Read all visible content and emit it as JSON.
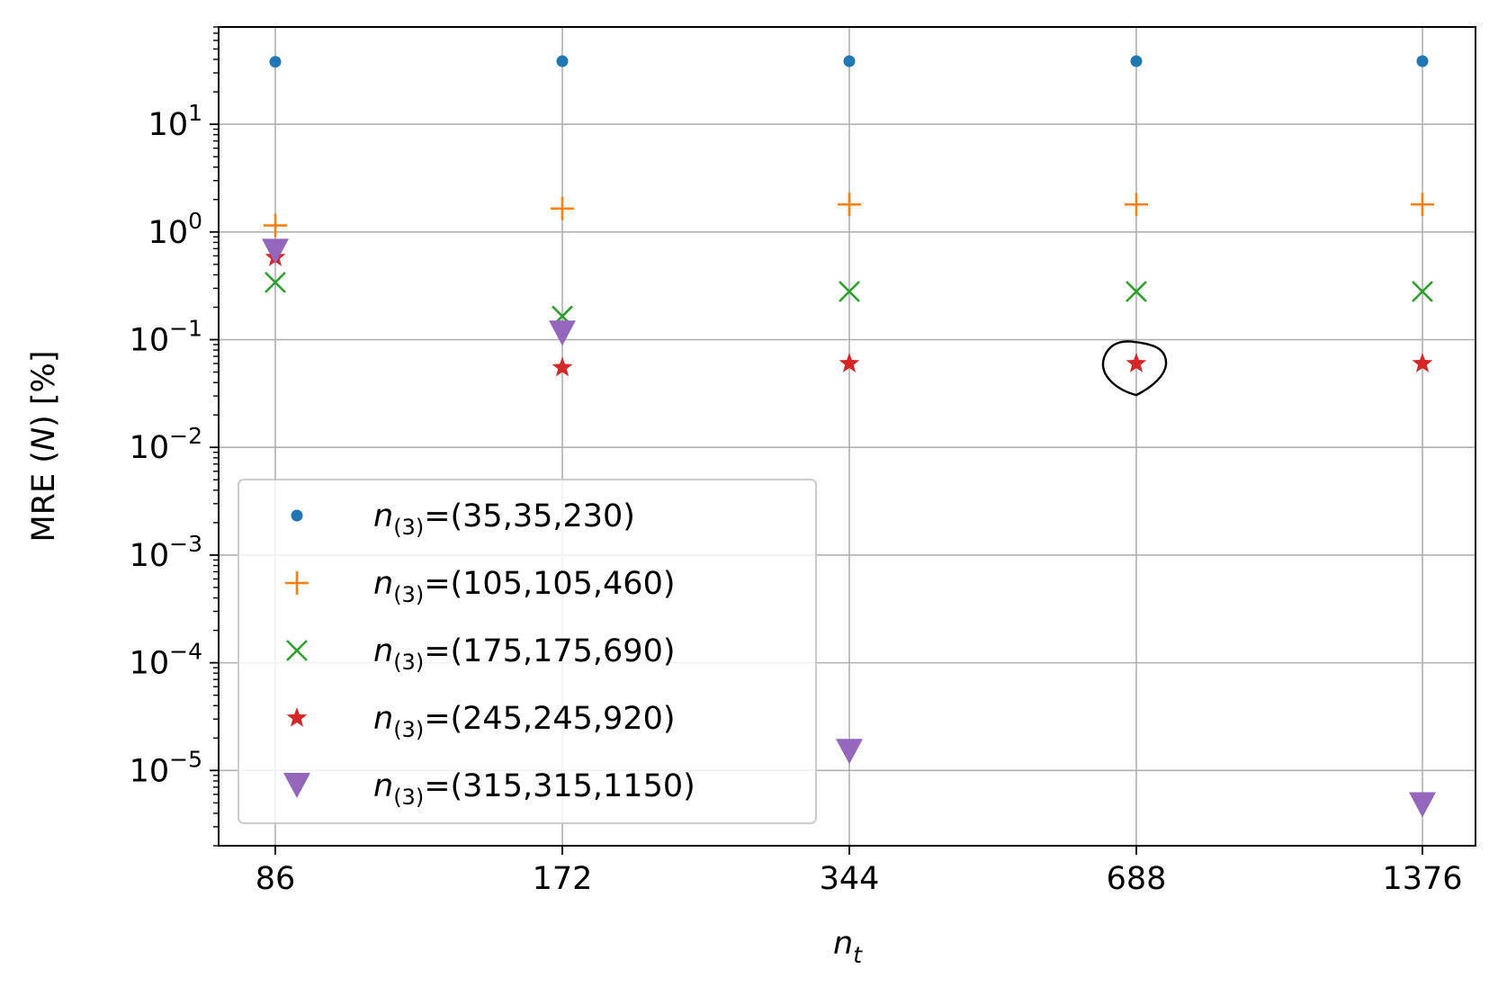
{
  "chart_data": {
    "type": "scatter",
    "title": "",
    "xlabel": {
      "base": "n",
      "sub": "t"
    },
    "ylabel": {
      "prefix": "MRE (",
      "var": "N",
      "suffix": ") [%]"
    },
    "yscale": "log",
    "ylim": [
      2e-06,
      80
    ],
    "grid": true,
    "categories": [
      "86",
      "172",
      "344",
      "688",
      "1376"
    ],
    "yticks": [
      {
        "exp": 1,
        "base": "10",
        "sup": "1"
      },
      {
        "exp": 0,
        "base": "10",
        "sup": "0"
      },
      {
        "exp": -1,
        "base": "10",
        "sup": "−1"
      },
      {
        "exp": -2,
        "base": "10",
        "sup": "−2"
      },
      {
        "exp": -3,
        "base": "10",
        "sup": "−3"
      },
      {
        "exp": -4,
        "base": "10",
        "sup": "−4"
      },
      {
        "exp": -5,
        "base": "10",
        "sup": "−5"
      }
    ],
    "legend_position": "lower-left",
    "series": [
      {
        "name": "n(3)=(35,35,230)",
        "label_base": "n",
        "label_sub": "(3)",
        "label_rest": "=(35,35,230)",
        "marker": "dot",
        "color": "#1f77b4",
        "values": [
          38,
          38.5,
          38.5,
          38.5,
          38.5
        ]
      },
      {
        "name": "n(3)=(105,105,460)",
        "label_base": "n",
        "label_sub": "(3)",
        "label_rest": "=(105,105,460)",
        "marker": "plus",
        "color": "#ff7f0e",
        "values": [
          1.15,
          1.65,
          1.8,
          1.8,
          1.8
        ]
      },
      {
        "name": "n(3)=(175,175,690)",
        "label_base": "n",
        "label_sub": "(3)",
        "label_rest": "=(175,175,690)",
        "marker": "x",
        "color": "#2ca02c",
        "values": [
          0.34,
          0.165,
          0.28,
          0.28,
          0.28
        ]
      },
      {
        "name": "n(3)=(245,245,920)",
        "label_base": "n",
        "label_sub": "(3)",
        "label_rest": "=(245,245,920)",
        "marker": "star",
        "color": "#d62728",
        "values": [
          0.58,
          0.055,
          0.06,
          0.06,
          0.06
        ]
      },
      {
        "name": "n(3)=(315,315,1150)",
        "label_base": "n",
        "label_sub": "(3)",
        "label_rest": "=(315,315,1150)",
        "marker": "tri_down",
        "color": "#9467bd",
        "values": [
          0.66,
          0.115,
          1.5e-05,
          null,
          4.8e-06
        ]
      }
    ],
    "annotation": {
      "type": "loop-circle",
      "category_index": 3,
      "value": 0.06,
      "note": "hand-drawn circle around the marker"
    }
  }
}
